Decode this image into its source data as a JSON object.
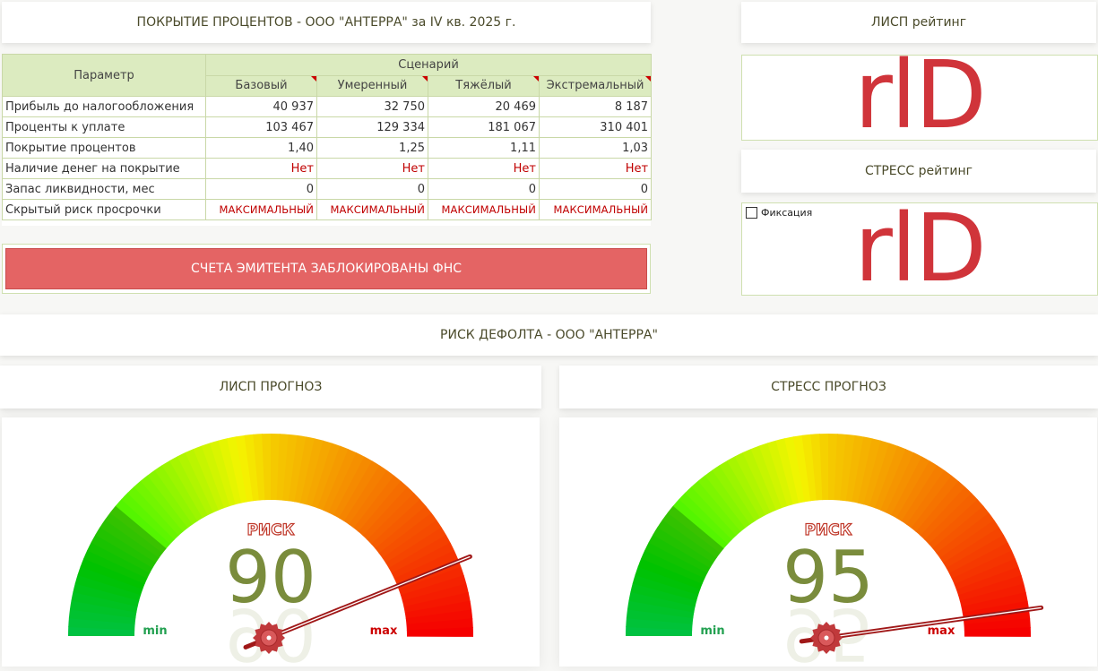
{
  "coverage_title": "ПОКРЫТИЕ ПРОЦЕНТОВ - ООО \"АНТЕРРА\" за IV кв. 2025 г.",
  "table": {
    "param_header": "Параметр",
    "scenario_header": "Сценарий",
    "scenarios": [
      "Базовый",
      "Умеренный",
      "Тяжёлый",
      "Экстремальный"
    ],
    "rows": [
      {
        "label": "Прибыль до налогообложения",
        "values": [
          "40 937",
          "32 750",
          "20 469",
          "8 187"
        ],
        "style": "num"
      },
      {
        "label": "Проценты к уплате",
        "values": [
          "103 467",
          "129 334",
          "181 067",
          "310 401"
        ],
        "style": "num"
      },
      {
        "label": "Покрытие процентов",
        "values": [
          "1,40",
          "1,25",
          "1,11",
          "1,03"
        ],
        "style": "num"
      },
      {
        "label": "Наличие денег на покрытие",
        "values": [
          "Нет",
          "Нет",
          "Нет",
          "Нет"
        ],
        "style": "red"
      },
      {
        "label": "Запас ликвидности, мес",
        "values": [
          "0",
          "0",
          "0",
          "0"
        ],
        "style": "num"
      },
      {
        "label": "Скрытый риск просрочки",
        "values": [
          "МАКСИМАЛЬНЫЙ",
          "МАКСИМАЛЬНЫЙ",
          "МАКСИМАЛЬНЫЙ",
          "МАКСИМАЛЬНЫЙ"
        ],
        "style": "max"
      }
    ]
  },
  "banner": "СЧЕТА ЭМИТЕНТА ЗАБЛОКИРОВАНЫ ФНС",
  "lisp_rating": {
    "title": "ЛИСП рейтинг",
    "value": "rlD"
  },
  "stress_rating": {
    "title": "СТРЕСС рейтинг",
    "value": "rlD",
    "checkbox_label": "Фиксация",
    "checkbox_checked": false
  },
  "default_risk_title": "РИСК ДЕФОЛТА - ООО \"АНТЕРРА\"",
  "gauges": [
    {
      "title": "ЛИСП ПРОГНОЗ",
      "risk_label": "РИСК",
      "value": 90,
      "min_label": "min",
      "max_label": "max",
      "needle_angle_deg": 22
    },
    {
      "title": "СТРЕСС ПРОГНОЗ",
      "risk_label": "РИСК",
      "value": 95,
      "min_label": "min",
      "max_label": "max",
      "needle_angle_deg": 8
    }
  ],
  "colors": {
    "red": "#d0343a",
    "banner": "#e46464",
    "header_green": "#dcebc0",
    "value_olive": "#7a8c3c",
    "min_green": "#22a050",
    "max_red": "#cc0000"
  }
}
